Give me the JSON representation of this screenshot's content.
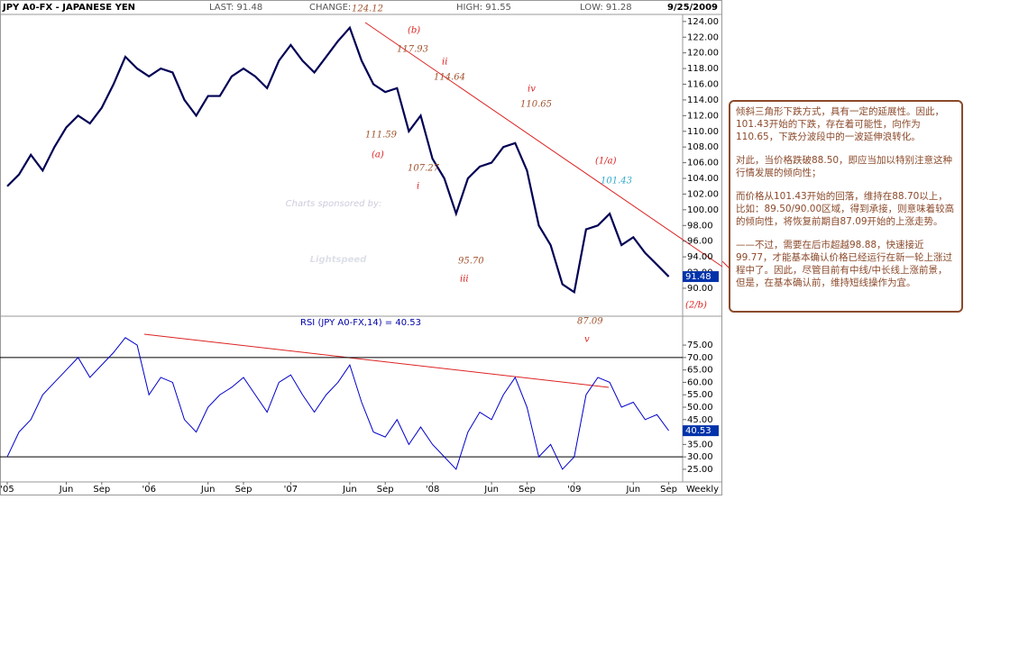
{
  "chart_data": {
    "type": "line",
    "title": "JPY A0-FX - JAPANESE YEN",
    "header": {
      "last": "LAST: 91.48",
      "change": "CHANGE:",
      "high": "HIGH: 91.55",
      "low": "LOW: 91.28",
      "date": "9/25/2009"
    },
    "period": "Weekly",
    "watermark": [
      "Charts sponsored by:",
      "Lightspeed"
    ],
    "categories": [
      "'05",
      null,
      null,
      null,
      null,
      "Jun",
      null,
      null,
      "Sep",
      null,
      null,
      null,
      "'06",
      null,
      null,
      null,
      null,
      "Jun",
      null,
      null,
      "Sep",
      null,
      null,
      null,
      "'07",
      null,
      null,
      null,
      null,
      "Jun",
      null,
      null,
      "Sep",
      null,
      null,
      null,
      "'08",
      null,
      null,
      null,
      null,
      "Jun",
      null,
      null,
      "Sep",
      null,
      null,
      null,
      "'09",
      null,
      null,
      null,
      null,
      "Jun",
      null,
      null,
      "Sep"
    ],
    "values": [
      103,
      104.5,
      107,
      105,
      108,
      110.5,
      112,
      111,
      113,
      116,
      119.5,
      118,
      117,
      118,
      117.5,
      114,
      112,
      114.5,
      114.5,
      117,
      118,
      117,
      115.5,
      119,
      121,
      119,
      117.5,
      119.5,
      121.5,
      123.2,
      119,
      116,
      115,
      115.5,
      110,
      112,
      106.5,
      104,
      99.5,
      104,
      105.5,
      106,
      108,
      108.5,
      105,
      98,
      95.5,
      90.5,
      89.5,
      97.5,
      98,
      99.5,
      95.5,
      96.5,
      94.5,
      93,
      91.48
    ],
    "color": "#000055",
    "ylim": [
      86.55,
      124.9
    ],
    "yticks": [
      {
        "value": 90,
        "label": "90.00"
      },
      {
        "value": 92,
        "label": "92.00"
      },
      {
        "value": 94,
        "label": "94.00"
      },
      {
        "value": 96,
        "label": "96.00"
      },
      {
        "value": 98,
        "label": "98.00"
      },
      {
        "value": 100,
        "label": "100.00"
      },
      {
        "value": 102,
        "label": "102.00"
      },
      {
        "value": 104,
        "label": "104.00"
      },
      {
        "value": 106,
        "label": "106.00"
      },
      {
        "value": 108,
        "label": "108.00"
      },
      {
        "value": 110,
        "label": "110.00"
      },
      {
        "value": 112,
        "label": "112.00"
      },
      {
        "value": 114,
        "label": "114.00"
      },
      {
        "value": 116,
        "label": "116.00"
      },
      {
        "value": 118,
        "label": "118.00"
      },
      {
        "value": 120,
        "label": "120.00"
      },
      {
        "value": 122,
        "label": "122.00"
      },
      {
        "value": 124,
        "label": "124.00"
      }
    ],
    "annotations": [
      "124.12",
      "(b)",
      "117.93",
      "ii",
      "114.64",
      "iv",
      "110.65",
      "111.59",
      "(a)",
      "107.27",
      "i",
      "(1/a)",
      "101.43",
      "95.70",
      "iii",
      "(2/b)",
      "87.09",
      "v"
    ],
    "rsi": {
      "title": "RSI (JPY A0-FX,14) = 40.53",
      "color": "#0000cc",
      "values": [
        30,
        40,
        45,
        55,
        60,
        65,
        70,
        62,
        67,
        72,
        78,
        75,
        55,
        62,
        60,
        45,
        40,
        50,
        55,
        58,
        62,
        55,
        48,
        60,
        63,
        55,
        48,
        55,
        60,
        67,
        52,
        40,
        38,
        45,
        35,
        42,
        35,
        30,
        25,
        40,
        48,
        45,
        55,
        62,
        50,
        30,
        35,
        25,
        30,
        55,
        62,
        60,
        50,
        52,
        45,
        47,
        40.53
      ],
      "ylim": [
        19.9,
        81.2
      ],
      "yticks": [
        {
          "value": 25,
          "label": "25.00"
        },
        {
          "value": 30,
          "label": "30.00"
        },
        {
          "value": 35,
          "label": "35.00"
        },
        {
          "value": 40,
          "label": "40.00"
        },
        {
          "value": 45,
          "label": "45.00"
        },
        {
          "value": 50,
          "label": "50.00"
        },
        {
          "value": 55,
          "label": "55.00"
        },
        {
          "value": 60,
          "label": "60.00"
        },
        {
          "value": 65,
          "label": "65.00"
        },
        {
          "value": 70,
          "label": "70.00"
        },
        {
          "value": 75,
          "label": "75.00"
        }
      ],
      "levels": [
        70,
        30
      ]
    }
  },
  "note": {
    "paragraphs": [
      "倾斜三角形下跌方式，具有一定的延展性。因此，101.43开始的下跌，存在着可能性，向作为110.65，下跌分波段中的一波延伸浪转化。",
      "对此，当价格跌破88.50，即应当加以特别注意这种行情发展的倾向性；",
      "而价格从101.43开始的回落，维持在88.70以上，比如：89.50/90.00区域，得到承接，则意味着较高的倾向性，将恢复前期自87.09开始的上涨走势。",
      "——不过，需要在后市超越98.88，快速接近99.77，才能基本确认价格已经运行在新一轮上涨过程中了。因此，尽管目前有中线/中长线上涨前景，但是，在基本确认前，维持短线操作为宜。"
    ]
  }
}
